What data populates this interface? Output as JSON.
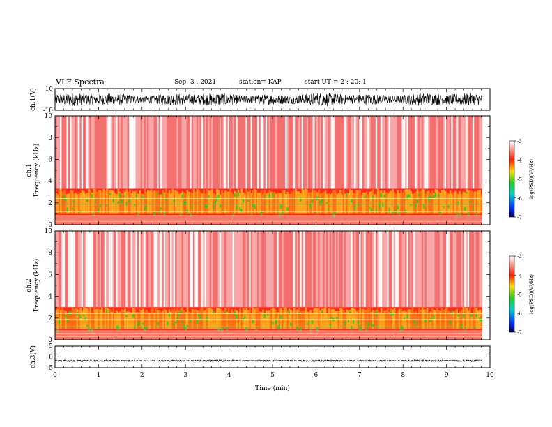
{
  "header": {
    "title": "VLF Spectra",
    "date": "Sep. 3 , 2021",
    "station": "station= KAP",
    "start": "start  UT =   2 : 20: 1"
  },
  "colors": {
    "spectrogram_low": "#ffffff",
    "spectrogram_mid": "#ff2020",
    "spectrogram_band": "#ffd000",
    "spectrogram_peak": "#20d020",
    "waveform": "#000000"
  },
  "chart_data": [
    {
      "type": "line",
      "name": "ch1-waveform",
      "ylabel": "ch.1(V)",
      "ylim": [
        -10,
        10
      ],
      "yticks": [
        "10",
        "-10"
      ],
      "xlim": [
        0,
        10
      ],
      "description_level": "dense noise waveform spanning roughly -7 to 7 V"
    },
    {
      "type": "heatmap",
      "name": "ch1-spectrogram",
      "ylabel": "ch.1\nFrequency  (kHz)",
      "ylim": [
        0,
        10
      ],
      "yticks": [
        "0",
        "2",
        "4",
        "6",
        "8",
        "10"
      ],
      "xlim": [
        0,
        10
      ],
      "band_top_khz": 3.3,
      "colorbar": {
        "label": "log(PSD)(V²/Hz)",
        "ticks": [
          "-3",
          "-4",
          "-5",
          "-6",
          "-7"
        ],
        "range": [
          -7,
          -3
        ]
      }
    },
    {
      "type": "heatmap",
      "name": "ch2-spectrogram",
      "ylabel": "ch.2\nFrequency  (kHz)",
      "ylim": [
        0,
        10
      ],
      "yticks": [
        "0",
        "2",
        "4",
        "6",
        "8",
        "10"
      ],
      "xlim": [
        0,
        10
      ],
      "band_top_khz": 3.0,
      "colorbar": {
        "label": "log(PSD)(V²/Hz)",
        "ticks": [
          "-3",
          "-4",
          "-5",
          "-6",
          "-7"
        ],
        "range": [
          -7,
          -3
        ]
      }
    },
    {
      "type": "line",
      "name": "ch3-waveform",
      "ylabel": "ch.3(V)",
      "ylim": [
        -5,
        5
      ],
      "yticks": [
        "5",
        "0",
        "-5"
      ],
      "xlim": [
        0,
        10
      ],
      "xlabel": "Time  (min)",
      "xticks": [
        "0",
        "1",
        "2",
        "3",
        "4",
        "5",
        "6",
        "7",
        "8",
        "9",
        "10"
      ],
      "description_level": "near constant about -2 V"
    }
  ],
  "labels": {
    "ch1_wave": "ch.1(V)",
    "ch1_freq_a": "ch.1",
    "ch1_freq_b": "Frequency  (kHz)",
    "ch2_freq_a": "ch.2",
    "ch2_freq_b": "Frequency  (kHz)",
    "ch3_wave": "ch.3(V)",
    "xlabel": "Time  (min)",
    "colorbar_label": "log(PSD)(V²/Hz)"
  }
}
